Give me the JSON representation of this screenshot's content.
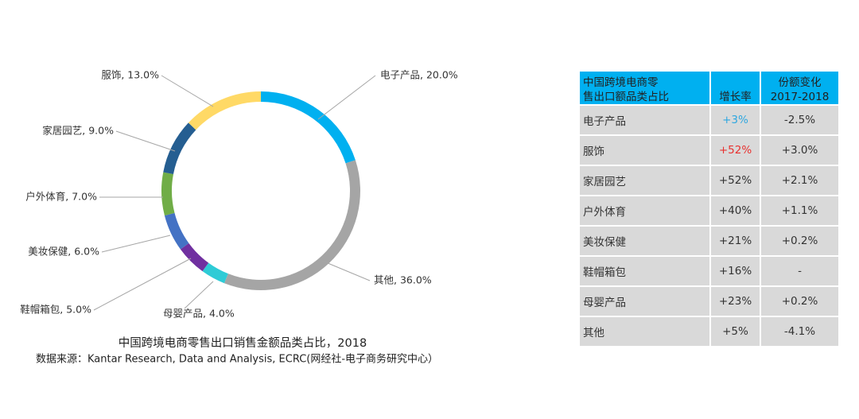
{
  "chart_data": {
    "type": "donut",
    "caption": "中国跨境电商零售出口销售金额品类占比，2018",
    "source": "数据来源：Kantar Research, Data and Analysis, ECRC(网经社-电子商务研究中心）",
    "categories": [
      "电子产品",
      "其他",
      "母婴产品",
      "鞋帽箱包",
      "美妆保健",
      "户外体育",
      "家居园艺",
      "服饰"
    ],
    "values": [
      20,
      36,
      4,
      5,
      6,
      7,
      9,
      13
    ],
    "value_labels": [
      "电子产品, 20.0%",
      "其他, 36.0%",
      "母婴产品, 4.0%",
      "鞋帽箱包, 5.0%",
      "美妆保健, 6.0%",
      "户外体育, 7.0%",
      "家居园艺, 9.0%",
      "服饰, 13.0%"
    ],
    "colors": [
      "#00b0f0",
      "#a5a5a5",
      "#2ecbd6",
      "#7030a0",
      "#4472c4",
      "#70ad47",
      "#255e91",
      "#ffd966"
    ]
  },
  "table": {
    "header": [
      [
        "中国跨境电商零",
        "售出口额品类占比"
      ],
      [
        "增长率"
      ],
      [
        "份额变化",
        "2017-2018"
      ]
    ],
    "rows": [
      [
        "电子产品",
        "+3%",
        "-2.5%"
      ],
      [
        "服饰",
        "+52%",
        "+3.0%"
      ],
      [
        "家居园艺",
        "+52%",
        "+2.1%"
      ],
      [
        "户外体育",
        "+40%",
        "+1.1%"
      ],
      [
        "美妆保健",
        "+21%",
        "+0.2%"
      ],
      [
        "鞋帽箱包",
        "+16%",
        "-"
      ],
      [
        "母婴产品",
        "+23%",
        "+0.2%"
      ],
      [
        "其他",
        "+5%",
        "-4.1%"
      ]
    ],
    "colored_cells": [
      {
        "row": 0,
        "col": 1,
        "color": "#2ea7e0"
      },
      {
        "row": 1,
        "col": 1,
        "color": "#e8312f"
      }
    ]
  }
}
